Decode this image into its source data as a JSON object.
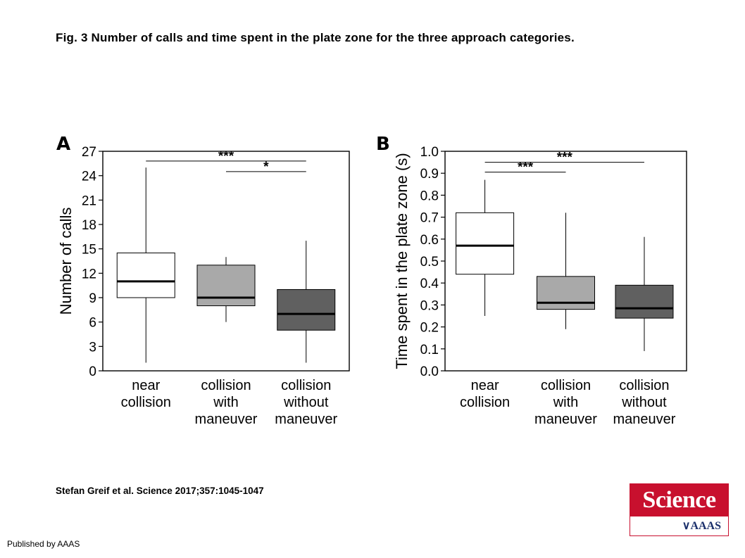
{
  "figure": {
    "title": "Fig. 3 Number of calls and time spent in the plate zone for the three approach categories.",
    "citation": "Stefan Greif et al. Science 2017;357:1045-1047",
    "publisher": "Published by AAAS",
    "logo": {
      "top_text": "Science",
      "bottom_text": "AAAS",
      "color": "#c8102e",
      "bottom_color": "#1a2f6b"
    }
  },
  "chart_data": [
    {
      "type": "box",
      "panel_label": "A",
      "ylabel": "Number of calls",
      "xlabel": "",
      "ylim": [
        0,
        27
      ],
      "yticks": [
        0,
        3,
        6,
        9,
        12,
        15,
        18,
        21,
        24,
        27
      ],
      "categories": [
        [
          "near",
          "collision"
        ],
        [
          "collision",
          "with",
          "maneuver"
        ],
        [
          "collision",
          "without",
          "maneuver"
        ]
      ],
      "boxes": [
        {
          "min": 1,
          "q1": 9,
          "median": 11,
          "q3": 14.5,
          "max": 25,
          "fill": "#ffffff"
        },
        {
          "min": 6,
          "q1": 8,
          "median": 9,
          "q3": 13,
          "max": 14,
          "fill": "#a9a9a9"
        },
        {
          "min": 1,
          "q1": 5,
          "median": 7,
          "q3": 10,
          "max": 16,
          "fill": "#606060"
        }
      ],
      "significance": [
        {
          "from": 0,
          "to": 2,
          "label": "***",
          "y": 25.8
        },
        {
          "from": 1,
          "to": 2,
          "label": "*",
          "y": 24.5
        }
      ],
      "grid": false
    },
    {
      "type": "box",
      "panel_label": "B",
      "ylabel": "Time spent in the plate zone (s)",
      "xlabel": "",
      "ylim": [
        0.0,
        1.0
      ],
      "yticks": [
        "0.0",
        "0.1",
        "0.2",
        "0.3",
        "0.4",
        "0.5",
        "0.6",
        "0.7",
        "0.8",
        "0.9",
        "1.0"
      ],
      "categories": [
        [
          "near",
          "collision"
        ],
        [
          "collision",
          "with",
          "maneuver"
        ],
        [
          "collision",
          "without",
          "maneuver"
        ]
      ],
      "boxes": [
        {
          "min": 0.25,
          "q1": 0.44,
          "median": 0.57,
          "q3": 0.72,
          "max": 0.87,
          "fill": "#ffffff"
        },
        {
          "min": 0.19,
          "q1": 0.28,
          "median": 0.31,
          "q3": 0.43,
          "max": 0.72,
          "fill": "#a9a9a9"
        },
        {
          "min": 0.09,
          "q1": 0.24,
          "median": 0.285,
          "q3": 0.39,
          "max": 0.61,
          "fill": "#606060"
        }
      ],
      "significance": [
        {
          "from": 0,
          "to": 2,
          "label": "***",
          "y": 0.95
        },
        {
          "from": 0,
          "to": 1,
          "label": "***",
          "y": 0.905
        }
      ],
      "grid": false
    }
  ]
}
